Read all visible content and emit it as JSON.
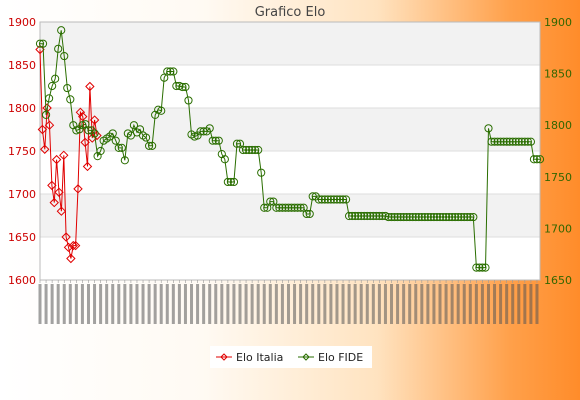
{
  "chart_data": {
    "type": "line",
    "title": "Grafico Elo",
    "grid": true,
    "legend_position": "bottom",
    "y_left": {
      "ylim": [
        1600,
        1900
      ],
      "ticks": [
        1600,
        1650,
        1700,
        1750,
        1800,
        1850,
        1900
      ],
      "color": "#cc0000"
    },
    "y_right": {
      "ylim": [
        1650,
        1900
      ],
      "ticks": [
        1650,
        1700,
        1750,
        1800,
        1850,
        1900
      ],
      "color": "#336600"
    },
    "series": [
      {
        "name": "Elo Italia",
        "axis": "left",
        "color": "#e00000",
        "values": [
          1868,
          1775,
          1752,
          1800,
          1780,
          1710,
          1690,
          1740,
          1702,
          1680,
          1745,
          1650,
          1638,
          1625,
          1640,
          1640,
          1706,
          1795,
          1790,
          1760,
          1732,
          1825,
          1765,
          1786,
          1768
        ]
      },
      {
        "name": "Elo FIDE",
        "axis": "right",
        "color": "#2a6e00",
        "values": [
          1879,
          1879,
          1810,
          1826,
          1838,
          1845,
          1874,
          1892,
          1867,
          1836,
          1825,
          1800,
          1795,
          1796,
          1800,
          1801,
          1795,
          1795,
          1792,
          1770,
          1775,
          1785,
          1787,
          1789,
          1792,
          1785,
          1778,
          1778,
          1766,
          1792,
          1790,
          1800,
          1793,
          1796,
          1790,
          1788,
          1780,
          1780,
          1810,
          1815,
          1814,
          1846,
          1852,
          1852,
          1852,
          1838,
          1838,
          1837,
          1837,
          1824,
          1791,
          1789,
          1790,
          1794,
          1794,
          1794,
          1797,
          1785,
          1785,
          1785,
          1772,
          1767,
          1745,
          1745,
          1745,
          1782,
          1782,
          1776,
          1776,
          1776,
          1776,
          1776,
          1776,
          1754,
          1720,
          1720,
          1726,
          1726,
          1720,
          1720,
          1720,
          1720,
          1720,
          1720,
          1720,
          1720,
          1720,
          1720,
          1714,
          1714,
          1731,
          1731,
          1728,
          1728,
          1728,
          1728,
          1728,
          1728,
          1728,
          1728,
          1728,
          1728,
          1712,
          1712,
          1712,
          1712,
          1712,
          1712,
          1712,
          1712,
          1712,
          1712,
          1712,
          1712,
          1712,
          1711,
          1711,
          1711,
          1711,
          1711,
          1711,
          1711,
          1711,
          1711,
          1711,
          1711,
          1711,
          1711,
          1711,
          1711,
          1711,
          1711,
          1711,
          1711,
          1711,
          1711,
          1711,
          1711,
          1711,
          1711,
          1711,
          1711,
          1711,
          1711,
          1662,
          1662,
          1662,
          1662,
          1797,
          1784,
          1784,
          1784,
          1784,
          1784,
          1784,
          1784,
          1784,
          1784,
          1784,
          1784,
          1784,
          1784,
          1784,
          1767,
          1767,
          1767
        ]
      }
    ]
  },
  "legend": {
    "elo_italia_label": "Elo Italia",
    "elo_fide_label": "Elo FIDE"
  }
}
